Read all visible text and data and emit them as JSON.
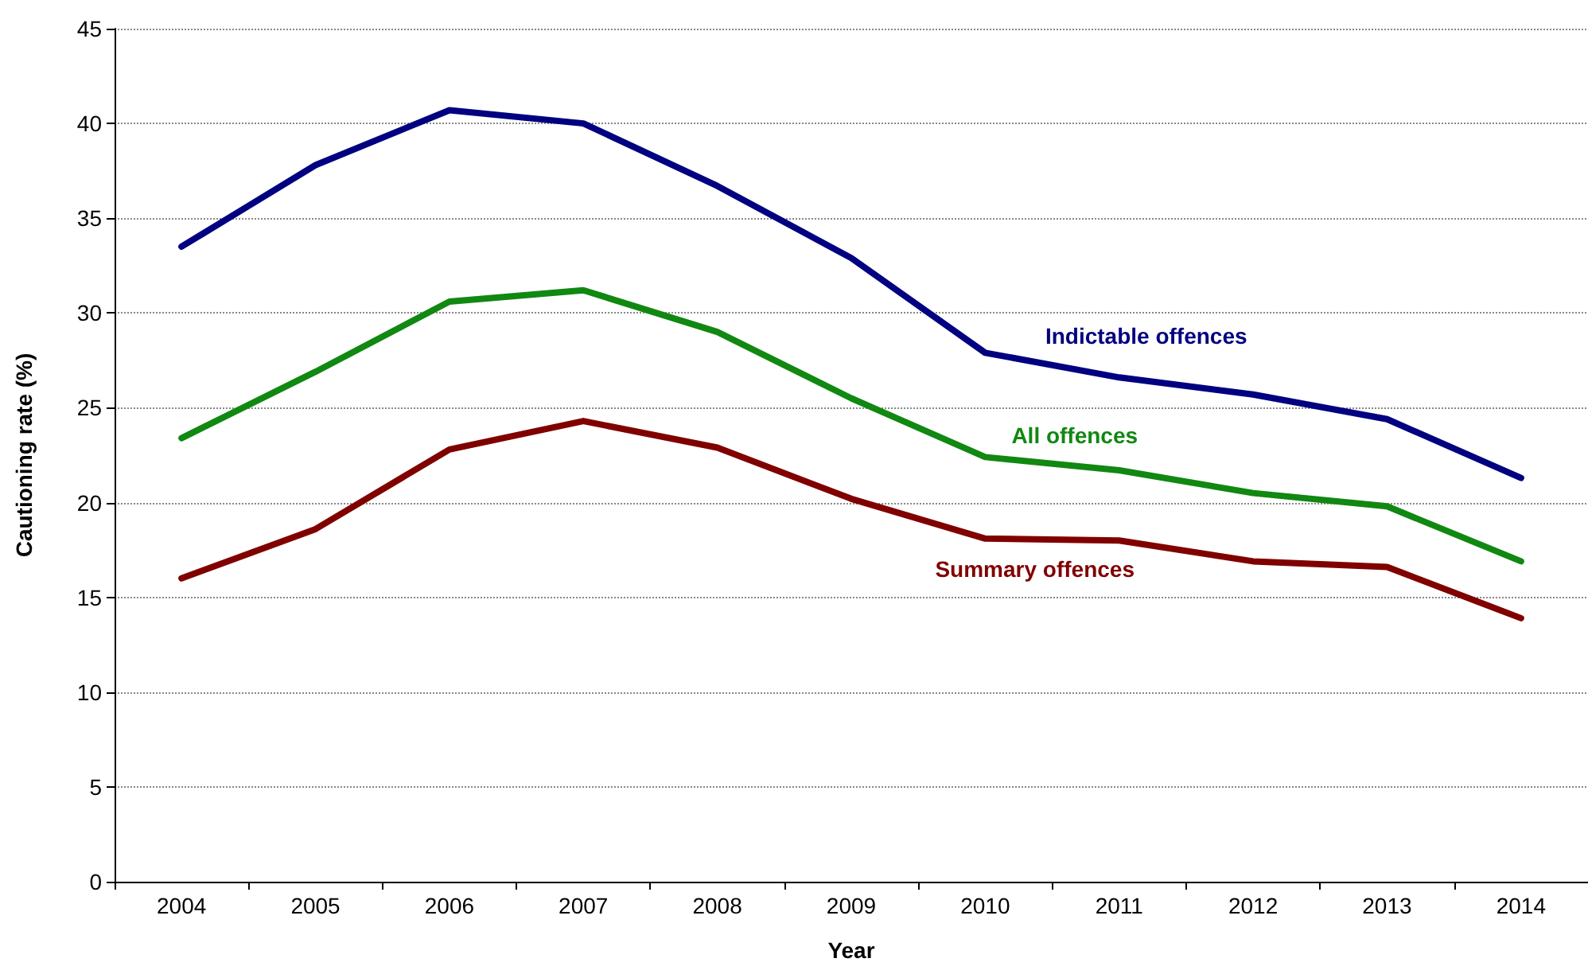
{
  "chart_data": {
    "type": "line",
    "xlabel": "Year",
    "ylabel": "Cautioning rate (%)",
    "categories": [
      "2004",
      "2005",
      "2006",
      "2007",
      "2008",
      "2009",
      "2010",
      "2011",
      "2012",
      "2013",
      "2014"
    ],
    "series": [
      {
        "name": "Indictable offences",
        "color": "#000080",
        "values": [
          33.5,
          37.8,
          40.7,
          40.0,
          36.7,
          32.9,
          27.9,
          26.6,
          25.7,
          24.4,
          21.3
        ]
      },
      {
        "name": "All offences",
        "color": "#118811",
        "values": [
          23.4,
          26.9,
          30.6,
          31.2,
          29.0,
          25.5,
          22.4,
          21.7,
          20.5,
          19.8,
          16.9
        ]
      },
      {
        "name": "Summary offences",
        "color": "#800000",
        "values": [
          16.0,
          18.6,
          22.8,
          24.3,
          22.9,
          20.2,
          18.1,
          18.0,
          16.9,
          16.6,
          13.9
        ]
      }
    ],
    "ylim": [
      0,
      45
    ],
    "yticks": [
      0,
      5,
      10,
      15,
      20,
      25,
      30,
      35,
      40,
      45
    ],
    "grid": "y",
    "legend": false,
    "marker": "none",
    "line_style": "solid"
  }
}
